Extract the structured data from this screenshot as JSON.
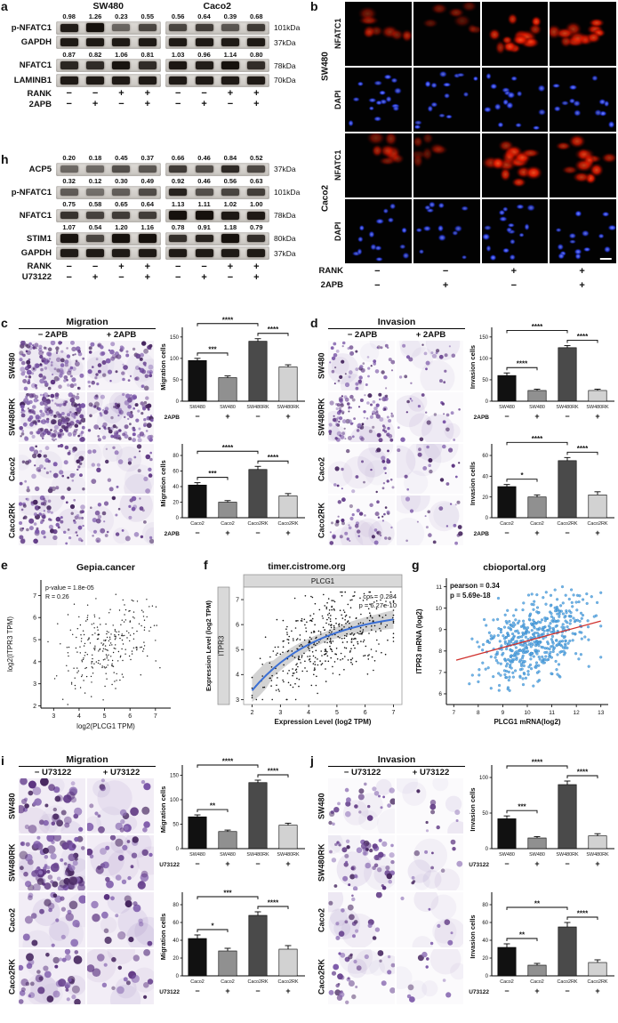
{
  "colors": {
    "bars": [
      "#111111",
      "#909090",
      "#4a4a4a",
      "#d2d2d2"
    ],
    "nfatc1_red": "#e01800",
    "dapi_blue": "#2b3fe0",
    "migration_purple": "#5b3380",
    "trend_red": "#d0312d",
    "loess_blue": "#3b6fd4",
    "point_blue": "#5aa9e6"
  },
  "a": {
    "label": "a",
    "show_headers": true,
    "cell_lines": [
      "SW480",
      "Caco2"
    ],
    "blot_rows": [
      {
        "antibody": "p-NFATC1",
        "kda": "101kDa",
        "values": [
          [
            "0.98",
            "1.26",
            "0.23",
            "0.55"
          ],
          [
            "0.56",
            "0.64",
            "0.39",
            "0.68"
          ]
        ]
      },
      {
        "antibody": "GAPDH",
        "kda": "37kDa",
        "values": null
      },
      {
        "antibody": "NFATC1",
        "kda": "78kDa",
        "values": [
          [
            "0.87",
            "0.82",
            "1.06",
            "0.81"
          ],
          [
            "1.03",
            "0.96",
            "1.14",
            "0.80"
          ]
        ]
      },
      {
        "antibody": "LAMINB1",
        "kda": "70kDa",
        "values": null
      }
    ],
    "treatments": [
      {
        "name": "RANK",
        "signs": [
          "−",
          "−",
          "+",
          "+"
        ]
      },
      {
        "name": "2APB",
        "signs": [
          "−",
          "+",
          "−",
          "+"
        ]
      }
    ]
  },
  "b": {
    "label": "b",
    "row_groups": [
      {
        "cell_line": "SW480",
        "stains": [
          "NFATC1",
          "DAPI"
        ]
      },
      {
        "cell_line": "Caco2",
        "stains": [
          "NFATC1",
          "DAPI"
        ]
      }
    ],
    "treatments": [
      {
        "name": "RANK",
        "signs": [
          "−",
          "−",
          "+",
          "+"
        ]
      },
      {
        "name": "2APB",
        "signs": [
          "−",
          "+",
          "−",
          "+"
        ]
      }
    ]
  },
  "h": {
    "label": "h",
    "show_headers": false,
    "cell_lines": [
      "SW480",
      "Caco2"
    ],
    "blot_rows": [
      {
        "antibody": "ACP5",
        "kda": "37kDa",
        "values": [
          [
            "0.20",
            "0.18",
            "0.45",
            "0.37"
          ],
          [
            "0.66",
            "0.46",
            "0.84",
            "0.52"
          ]
        ]
      },
      {
        "antibody": "p-NFATC1",
        "kda": "101kDa",
        "values": [
          [
            "0.32",
            "0.12",
            "0.30",
            "0.49"
          ],
          [
            "0.92",
            "0.46",
            "0.56",
            "0.63"
          ]
        ]
      },
      {
        "antibody": "NFATC1",
        "kda": "78kDa",
        "values": [
          [
            "0.75",
            "0.58",
            "0.65",
            "0.64"
          ],
          [
            "1.13",
            "1.11",
            "1.02",
            "1.00"
          ]
        ]
      },
      {
        "antibody": "STIM1",
        "kda": "80kDa",
        "values": [
          [
            "1.07",
            "0.54",
            "1.20",
            "1.16"
          ],
          [
            "0.78",
            "0.91",
            "1.18",
            "0.79"
          ]
        ]
      },
      {
        "antibody": "GAPDH",
        "kda": "37kDa",
        "values": null
      }
    ],
    "treatments": [
      {
        "name": "RANK",
        "signs": [
          "−",
          "−",
          "+",
          "+"
        ]
      },
      {
        "name": "U73122",
        "signs": [
          "−",
          "+",
          "−",
          "+"
        ]
      }
    ]
  },
  "c": {
    "label": "c",
    "assay": "Migration",
    "treatment": "2APB",
    "conditions": [
      "− 2APB",
      "+ 2APB"
    ],
    "rows": [
      "SW480",
      "SW480RK",
      "Caco2",
      "Caco2RK"
    ],
    "charts": [
      {
        "type": "bar",
        "ylabel": "Migration cells",
        "yticks": [
          0,
          50,
          100,
          150
        ],
        "ymax": 160,
        "categories": [
          "SW480",
          "SW480",
          "SW480RK",
          "SW480RK"
        ],
        "signs": [
          "−",
          "+",
          "−",
          "+"
        ],
        "values": [
          95,
          55,
          140,
          80
        ],
        "errors": [
          5,
          4,
          6,
          5
        ],
        "comparisons": [
          {
            "a": 0,
            "b": 1,
            "stars": "***"
          },
          {
            "a": 0,
            "b": 2,
            "stars": "****"
          },
          {
            "a": 2,
            "b": 3,
            "stars": "****"
          }
        ]
      },
      {
        "type": "bar",
        "ylabel": "Migration cells",
        "yticks": [
          0,
          20,
          40,
          60,
          80
        ],
        "ymax": 88,
        "categories": [
          "Caco2",
          "Caco2",
          "Caco2RK",
          "Caco2RK"
        ],
        "signs": [
          "−",
          "+",
          "−",
          "+"
        ],
        "values": [
          42,
          20,
          62,
          28
        ],
        "errors": [
          3,
          2,
          4,
          3
        ],
        "comparisons": [
          {
            "a": 0,
            "b": 1,
            "stars": "***"
          },
          {
            "a": 0,
            "b": 2,
            "stars": "****"
          },
          {
            "a": 2,
            "b": 3,
            "stars": "****"
          }
        ]
      }
    ]
  },
  "d": {
    "label": "d",
    "assay": "Invasion",
    "treatment": "2APB",
    "conditions": [
      "− 2APB",
      "+ 2APB"
    ],
    "rows": [
      "SW480",
      "SW480RK",
      "Caco2",
      "Caco2RK"
    ],
    "charts": [
      {
        "type": "bar",
        "ylabel": "Invasion cells",
        "yticks": [
          0,
          50,
          100,
          150
        ],
        "ymax": 160,
        "categories": [
          "SW480",
          "SW480",
          "SW480RK",
          "SW480RK"
        ],
        "signs": [
          "−",
          "+",
          "−",
          "+"
        ],
        "values": [
          60,
          25,
          125,
          25
        ],
        "errors": [
          6,
          3,
          5,
          3
        ],
        "comparisons": [
          {
            "a": 0,
            "b": 1,
            "stars": "****"
          },
          {
            "a": 0,
            "b": 2,
            "stars": "****"
          },
          {
            "a": 2,
            "b": 3,
            "stars": "****"
          }
        ]
      },
      {
        "type": "bar",
        "ylabel": "Invasion cells",
        "yticks": [
          0,
          20,
          40,
          60
        ],
        "ymax": 66,
        "categories": [
          "Caco2",
          "Caco2",
          "Caco2RK",
          "Caco2RK"
        ],
        "signs": [
          "−",
          "+",
          "−",
          "+"
        ],
        "values": [
          30,
          20,
          55,
          22
        ],
        "errors": [
          2,
          2,
          3,
          3
        ],
        "comparisons": [
          {
            "a": 0,
            "b": 1,
            "stars": "*"
          },
          {
            "a": 0,
            "b": 2,
            "stars": "****"
          },
          {
            "a": 2,
            "b": 3,
            "stars": "****"
          }
        ]
      }
    ]
  },
  "e": {
    "label": "e",
    "title": "Gepia.cancer",
    "annotation": [
      "p-value = 1.8e-05",
      "R = 0.26"
    ],
    "xlabel": "log2(PLCG1 TPM)",
    "ylabel": "log2(ITPR3 TPM)",
    "xticks": [
      3,
      4,
      5,
      6,
      7
    ],
    "yticks": [
      2,
      3,
      4,
      5,
      6,
      7
    ],
    "chart": {
      "type": "scatter",
      "r": 0.26,
      "xlim": [
        2.5,
        7.6
      ],
      "ylim": [
        1.9,
        7.7
      ]
    },
    "n_points": 260
  },
  "f": {
    "label": "f",
    "title": "timer.cistrome.org",
    "facet_top": "PLCG1",
    "facet_left": "ITPR3",
    "annotation_cor": "cor = 0.284",
    "annotation_p": "p = 6.27e-10",
    "xlabel": "Expression Level (log2 TPM)",
    "ylabel": "Expression Level (log2 TPM)",
    "xticks": [
      2,
      3,
      4,
      5,
      6,
      7
    ],
    "yticks": [
      3,
      4,
      5,
      6,
      7
    ],
    "chart": {
      "type": "scatter",
      "cor": 0.284,
      "xlim": [
        1.7,
        7.3
      ],
      "ylim": [
        2.8,
        7.5
      ]
    },
    "n_points": 440
  },
  "g": {
    "label": "g",
    "title": "cbioportal.org",
    "annotation": [
      "pearson = 0.34",
      "p = 5.69e-18"
    ],
    "xlabel": "PLCG1 mRNA(log2)",
    "ylabel": "ITPR3 mRNA (log2)",
    "xticks": [
      7,
      8,
      9,
      10,
      11,
      12,
      13
    ],
    "yticks": [
      6,
      7,
      8,
      9,
      10,
      11
    ],
    "chart": {
      "type": "scatter",
      "pearson": 0.34,
      "xlim": [
        6.7,
        13.3
      ],
      "ylim": [
        5.5,
        11.4
      ]
    },
    "n_points": 520
  },
  "i": {
    "label": "i",
    "assay": "Migration",
    "treatment": "U73122",
    "conditions": [
      "− U73122",
      "+ U73122"
    ],
    "rows": [
      "SW480",
      "SW480RK",
      "Caco2",
      "Caco2RK"
    ],
    "charts": [
      {
        "type": "bar",
        "ylabel": "Migration cells",
        "yticks": [
          0,
          50,
          100,
          150
        ],
        "ymax": 160,
        "categories": [
          "SW480",
          "SW480",
          "SW480RK",
          "SW480RK"
        ],
        "signs": [
          "−",
          "+",
          "−",
          "+"
        ],
        "values": [
          65,
          35,
          135,
          48
        ],
        "errors": [
          4,
          3,
          5,
          4
        ],
        "comparisons": [
          {
            "a": 0,
            "b": 1,
            "stars": "**"
          },
          {
            "a": 0,
            "b": 2,
            "stars": "****"
          },
          {
            "a": 2,
            "b": 3,
            "stars": "****"
          }
        ]
      },
      {
        "type": "bar",
        "ylabel": "Migration cells",
        "yticks": [
          0,
          20,
          40,
          60,
          80
        ],
        "ymax": 88,
        "categories": [
          "Caco2",
          "Caco2",
          "Caco2RK",
          "Caco2RK"
        ],
        "signs": [
          "−",
          "+",
          "−",
          "+"
        ],
        "values": [
          42,
          28,
          68,
          30
        ],
        "errors": [
          4,
          3,
          4,
          4
        ],
        "comparisons": [
          {
            "a": 0,
            "b": 1,
            "stars": "*"
          },
          {
            "a": 0,
            "b": 2,
            "stars": "***"
          },
          {
            "a": 2,
            "b": 3,
            "stars": "****"
          }
        ]
      }
    ]
  },
  "j": {
    "label": "j",
    "assay": "Invasion",
    "treatment": "U73122",
    "conditions": [
      "− U73122",
      "+ U73122"
    ],
    "rows": [
      "SW480",
      "SW480RK",
      "Caco2",
      "Caco2RK"
    ],
    "charts": [
      {
        "type": "bar",
        "ylabel": "Invasion cells",
        "yticks": [
          0,
          50,
          100
        ],
        "ymax": 110,
        "categories": [
          "SW480",
          "SW480",
          "SW480RK",
          "SW480RK"
        ],
        "signs": [
          "−",
          "+",
          "−",
          "+"
        ],
        "values": [
          42,
          15,
          90,
          18
        ],
        "errors": [
          4,
          2,
          5,
          3
        ],
        "comparisons": [
          {
            "a": 0,
            "b": 1,
            "stars": "***"
          },
          {
            "a": 0,
            "b": 2,
            "stars": "****"
          },
          {
            "a": 2,
            "b": 3,
            "stars": "****"
          }
        ]
      },
      {
        "type": "bar",
        "ylabel": "Invasion cells",
        "yticks": [
          0,
          20,
          40,
          60,
          80
        ],
        "ymax": 88,
        "categories": [
          "Caco2",
          "Caco2",
          "Caco2RK",
          "Caco2RK"
        ],
        "signs": [
          "−",
          "+",
          "−",
          "+"
        ],
        "values": [
          32,
          12,
          55,
          15
        ],
        "errors": [
          4,
          2,
          5,
          3
        ],
        "comparisons": [
          {
            "a": 0,
            "b": 1,
            "stars": "**"
          },
          {
            "a": 0,
            "b": 2,
            "stars": "**"
          },
          {
            "a": 2,
            "b": 3,
            "stars": "****"
          }
        ]
      }
    ]
  }
}
